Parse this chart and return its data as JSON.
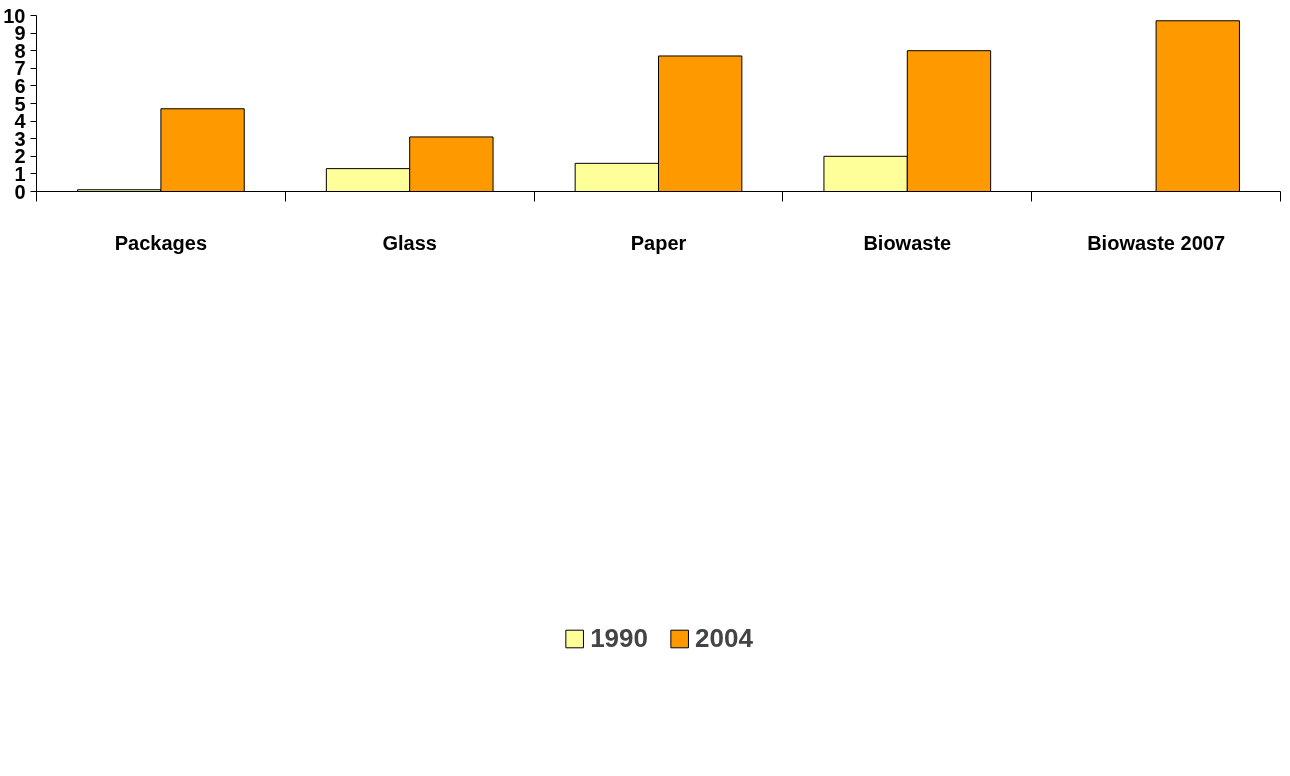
{
  "chart_data": {
    "type": "bar",
    "categories": [
      "Packages",
      "Glass",
      "Paper",
      "Biowaste",
      "Biowaste 2007"
    ],
    "series": [
      {
        "name": "1990",
        "color": "#ffff99",
        "values": [
          0.1,
          1.3,
          1.6,
          2.0,
          null
        ]
      },
      {
        "name": "2004",
        "color": "#ff9900",
        "values": [
          4.7,
          3.1,
          7.7,
          8.0,
          9.7
        ]
      }
    ],
    "ylim": [
      0,
      10
    ],
    "yticks": [
      0,
      1,
      2,
      3,
      4,
      5,
      6,
      7,
      8,
      9,
      10
    ],
    "grid": false,
    "legend": "bottom"
  }
}
